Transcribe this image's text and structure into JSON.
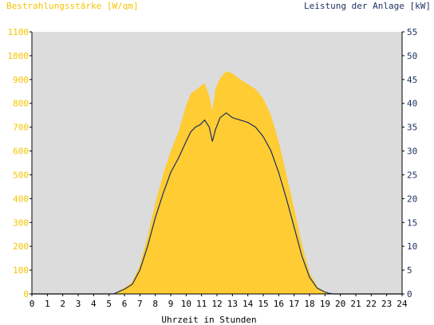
{
  "chart_data": {
    "type": "area",
    "left_axis_label": "Bestrahlungsstärke [W/qm]",
    "right_axis_label": "Leistung der Anlage [kW]",
    "xlabel": "Uhrzeit in Stunden",
    "xlim": [
      0,
      24
    ],
    "ylim_left": [
      0,
      1100
    ],
    "ylim_right": [
      0,
      55
    ],
    "x_ticks": [
      "0",
      "1",
      "2",
      "3",
      "4",
      "5",
      "6",
      "7",
      "8",
      "9",
      "10",
      "11",
      "12",
      "13",
      "14",
      "15",
      "16",
      "17",
      "18",
      "19",
      "20",
      "21",
      "22",
      "23",
      "24"
    ],
    "y_ticks_left": [
      "0",
      "100",
      "200",
      "300",
      "400",
      "500",
      "600",
      "700",
      "800",
      "900",
      "1000",
      "1100"
    ],
    "y_ticks_right": [
      "0",
      "5",
      "10",
      "15",
      "20",
      "25",
      "30",
      "35",
      "40",
      "45",
      "50",
      "55"
    ],
    "colors": {
      "plot_background": "#dcdcdc",
      "irradiance_fill": "#ffcc33",
      "power_line": "#1c2f5f",
      "left_axis_text": "#f5c400",
      "right_axis_text": "#1c2f5f"
    },
    "series": [
      {
        "name": "Bestrahlungsstärke [W/qm]",
        "axis": "left",
        "style": "area",
        "x": [
          0,
          5.3,
          5.7,
          6.0,
          6.5,
          7.0,
          7.5,
          8.0,
          8.5,
          9.0,
          9.5,
          10.0,
          10.3,
          10.6,
          10.9,
          11.2,
          11.5,
          11.7,
          11.9,
          12.2,
          12.6,
          13.0,
          13.5,
          14.0,
          14.5,
          15.0,
          15.5,
          16.0,
          16.5,
          17.0,
          17.5,
          18.0,
          18.5,
          19.0,
          19.3,
          19.6,
          24
        ],
        "values": [
          0,
          0,
          15,
          25,
          50,
          120,
          240,
          380,
          500,
          600,
          680,
          790,
          840,
          855,
          870,
          885,
          830,
          770,
          860,
          905,
          935,
          925,
          900,
          880,
          860,
          820,
          750,
          640,
          500,
          360,
          210,
          90,
          30,
          8,
          2,
          0,
          0
        ]
      },
      {
        "name": "Leistung der Anlage [kW]",
        "axis": "right",
        "style": "line",
        "x": [
          0,
          5.3,
          5.7,
          6.0,
          6.5,
          7.0,
          7.5,
          8.0,
          8.5,
          9.0,
          9.5,
          10.0,
          10.3,
          10.6,
          10.9,
          11.2,
          11.5,
          11.7,
          11.9,
          12.2,
          12.6,
          13.0,
          13.5,
          14.0,
          14.5,
          15.0,
          15.5,
          16.0,
          16.5,
          17.0,
          17.5,
          18.0,
          18.5,
          19.0,
          19.3,
          19.6,
          20.0,
          24
        ],
        "values": [
          0,
          0,
          0.6,
          1,
          2,
          5,
          10,
          16,
          21,
          25.5,
          28.5,
          32,
          34,
          35,
          35.5,
          36.5,
          35,
          32,
          34.5,
          37,
          38,
          37,
          36.5,
          36,
          35,
          33,
          30,
          25.5,
          20,
          14,
          8,
          3.5,
          1.2,
          0.4,
          0.1,
          0,
          0,
          0
        ]
      }
    ]
  }
}
